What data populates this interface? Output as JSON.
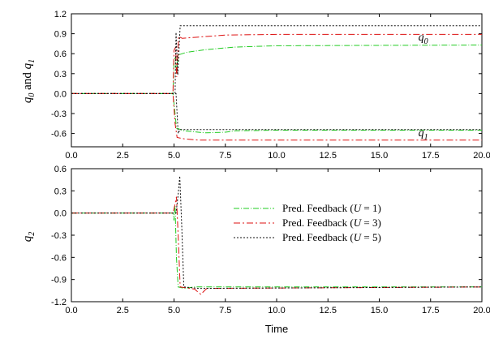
{
  "chart_data": [
    {
      "type": "line",
      "ylabel": {
        "q": "q",
        "s0": "0",
        "mid": " and ",
        "s1": "1"
      },
      "xlim": [
        0,
        20
      ],
      "ylim": [
        -0.8,
        1.2
      ],
      "xticks": [
        "0.0",
        "2.5",
        "5.0",
        "7.5",
        "10.0",
        "12.5",
        "15.0",
        "17.5",
        "20.0"
      ],
      "yticks": [
        "1.2",
        "0.9",
        "0.6",
        "0.3",
        "0.0",
        "-0.3",
        "-0.6"
      ],
      "annotations": [
        {
          "q": "q",
          "sub": "0",
          "x": 16.9,
          "y": 0.8
        },
        {
          "q": "q",
          "sub": "1",
          "x": 16.9,
          "y": -0.64
        }
      ],
      "series": [
        {
          "color": "#22cc22",
          "dash": "7 2 1 2",
          "points": [
            [
              0,
              0
            ],
            [
              4.95,
              0
            ],
            [
              5.0,
              0.5
            ],
            [
              5.08,
              0.55
            ],
            [
              5.12,
              0.3
            ],
            [
              5.2,
              0.58
            ],
            [
              5.6,
              0.62
            ],
            [
              6.5,
              0.66
            ],
            [
              8,
              0.7
            ],
            [
              10,
              0.72
            ],
            [
              20,
              0.73
            ]
          ]
        },
        {
          "color": "#22cc22",
          "dash": "7 2 1 2",
          "points": [
            [
              0,
              0
            ],
            [
              4.95,
              0
            ],
            [
              5.05,
              -0.3
            ],
            [
              5.12,
              -0.52
            ],
            [
              5.5,
              -0.56
            ],
            [
              6.5,
              -0.59
            ],
            [
              7.5,
              -0.58
            ],
            [
              8,
              -0.56
            ],
            [
              10,
              -0.55
            ],
            [
              20,
              -0.55
            ]
          ]
        },
        {
          "color": "#dd1111",
          "dash": "8 3 2 3",
          "points": [
            [
              0,
              0
            ],
            [
              4.95,
              0
            ],
            [
              5.0,
              0.65
            ],
            [
              5.08,
              0.7
            ],
            [
              5.13,
              0.25
            ],
            [
              5.22,
              0.86
            ],
            [
              5.4,
              0.83
            ],
            [
              6.2,
              0.85
            ],
            [
              7.5,
              0.88
            ],
            [
              10,
              0.89
            ],
            [
              20,
              0.89
            ]
          ]
        },
        {
          "color": "#dd1111",
          "dash": "8 3 2 3",
          "points": [
            [
              0,
              0
            ],
            [
              4.95,
              0
            ],
            [
              5.05,
              -0.45
            ],
            [
              5.15,
              -0.66
            ],
            [
              5.5,
              -0.68
            ],
            [
              6.2,
              -0.7
            ],
            [
              8,
              -0.7
            ],
            [
              20,
              -0.7
            ]
          ]
        },
        {
          "color": "#111111",
          "dash": "2 2",
          "points": [
            [
              0,
              0
            ],
            [
              5.05,
              0
            ],
            [
              5.1,
              0.92
            ],
            [
              5.18,
              0.28
            ],
            [
              5.3,
              1.02
            ],
            [
              20,
              1.02
            ]
          ]
        },
        {
          "color": "#111111",
          "dash": "2 2",
          "points": [
            [
              0,
              0
            ],
            [
              5.1,
              0
            ],
            [
              5.2,
              -0.6
            ],
            [
              5.3,
              -0.54
            ],
            [
              20,
              -0.54
            ]
          ]
        }
      ]
    },
    {
      "type": "line",
      "ylabel": {
        "q": "q",
        "s": "2"
      },
      "xlabel": "Time",
      "xlim": [
        0,
        20
      ],
      "ylim": [
        -1.2,
        0.6
      ],
      "xticks": [
        "0.0",
        "2.5",
        "5.0",
        "7.5",
        "10.0",
        "12.5",
        "15.0",
        "17.5",
        "20.0"
      ],
      "yticks": [
        "0.6",
        "0.3",
        "0.0",
        "-0.3",
        "-0.6",
        "-0.9",
        "-1.2"
      ],
      "legend": [
        {
          "pre": "Pred. Feedback (",
          "var": "U",
          "post": " = 1)",
          "color": "#22cc22",
          "dash": "7 2 1 2"
        },
        {
          "pre": "Pred. Feedback (",
          "var": "U",
          "post": " = 3)",
          "color": "#dd1111",
          "dash": "8 3 2 3"
        },
        {
          "pre": "Pred. Feedback (",
          "var": "U",
          "post": " = 5)",
          "color": "#111111",
          "dash": "2 2"
        }
      ],
      "legend_position": "center-right",
      "series": [
        {
          "color": "#22cc22",
          "dash": "7 2 1 2",
          "points": [
            [
              0,
              0
            ],
            [
              4.95,
              0
            ],
            [
              5.0,
              -0.1
            ],
            [
              5.05,
              0.1
            ],
            [
              5.12,
              -0.6
            ],
            [
              5.2,
              -1.0
            ],
            [
              5.5,
              -1.02
            ],
            [
              6,
              -1.0
            ],
            [
              20,
              -1.0
            ]
          ]
        },
        {
          "color": "#dd1111",
          "dash": "8 3 2 3",
          "points": [
            [
              0,
              0
            ],
            [
              4.95,
              0
            ],
            [
              5.05,
              0.12
            ],
            [
              5.12,
              0.22
            ],
            [
              5.2,
              -0.3
            ],
            [
              5.3,
              -1.0
            ],
            [
              6.0,
              -1.03
            ],
            [
              6.3,
              -1.1
            ],
            [
              6.6,
              -1.02
            ],
            [
              20,
              -1.0
            ]
          ]
        },
        {
          "color": "#111111",
          "dash": "2 2",
          "points": [
            [
              0,
              0
            ],
            [
              5.1,
              0
            ],
            [
              5.2,
              0.25
            ],
            [
              5.28,
              0.5
            ],
            [
              5.38,
              -0.2
            ],
            [
              5.48,
              -1.0
            ],
            [
              6.2,
              -1.02
            ],
            [
              20,
              -1.0
            ]
          ]
        }
      ]
    }
  ]
}
